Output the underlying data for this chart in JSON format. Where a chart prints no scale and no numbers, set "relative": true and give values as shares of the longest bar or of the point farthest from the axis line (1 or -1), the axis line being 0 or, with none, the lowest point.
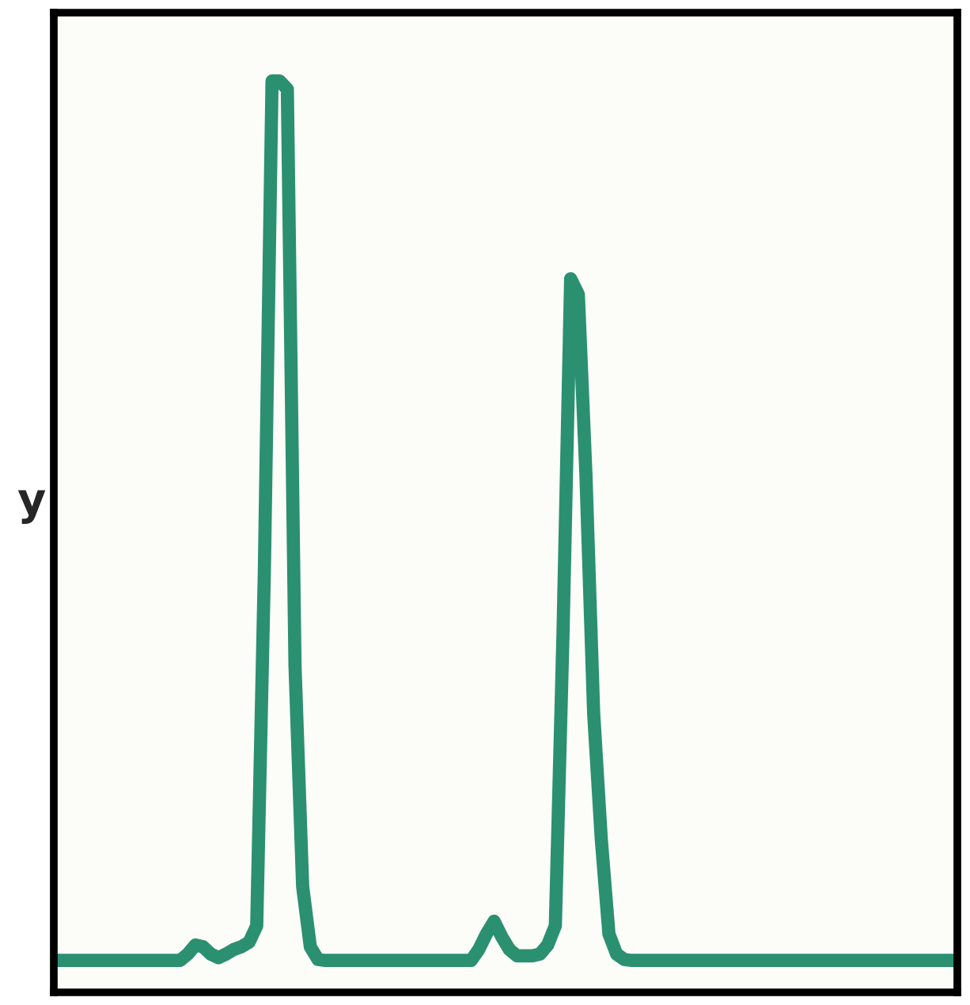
{
  "chart_data": {
    "type": "line",
    "relative": true,
    "ylabel": "y",
    "grid": false,
    "legend": false,
    "categories": [
      null,
      null,
      null,
      null,
      null,
      null,
      null,
      null,
      null,
      null,
      null,
      null,
      null,
      null,
      null,
      null,
      null,
      null,
      null,
      null,
      null,
      null,
      null,
      null,
      null,
      null,
      null,
      null,
      null,
      null,
      null,
      null,
      null,
      null,
      null,
      null,
      null,
      null,
      null,
      null,
      null,
      null,
      null,
      null,
      null,
      null,
      null,
      null,
      null,
      null,
      null,
      null,
      null,
      null,
      null,
      null,
      null,
      null,
      null,
      null,
      null,
      null,
      null,
      null,
      null,
      null,
      null,
      null,
      null,
      null,
      null,
      null,
      null,
      null,
      null,
      null,
      null,
      null,
      null,
      null,
      null,
      null,
      null,
      null,
      null,
      null,
      null,
      null,
      null,
      null,
      null,
      null,
      null,
      null,
      null,
      null,
      null,
      null,
      null,
      null,
      null,
      null,
      null,
      null,
      null,
      null,
      null,
      null,
      null,
      null,
      null,
      null,
      null,
      null,
      null,
      null,
      null,
      null
    ],
    "series": [
      {
        "color": "#2a9070",
        "values": [
          0.035,
          0.035,
          0.035,
          0.035,
          0.035,
          0.035,
          0.035,
          0.035,
          0.035,
          0.035,
          0.035,
          0.035,
          0.035,
          0.035,
          0.035,
          0.035,
          0.035,
          0.042,
          0.052,
          0.05,
          0.042,
          0.038,
          0.042,
          0.047,
          0.05,
          0.055,
          0.073,
          0.463,
          1,
          1,
          0.991,
          0.359,
          0.116,
          0.05,
          0.036,
          0.035,
          0.035,
          0.035,
          0.035,
          0.035,
          0.035,
          0.035,
          0.035,
          0.035,
          0.035,
          0.035,
          0.035,
          0.035,
          0.035,
          0.035,
          0.035,
          0.035,
          0.035,
          0.035,
          0.035,
          0.047,
          0.064,
          0.078,
          0.061,
          0.047,
          0.04,
          0.04,
          0.04,
          0.042,
          0.052,
          0.073,
          0.393,
          0.783,
          0.766,
          0.567,
          0.307,
          0.168,
          0.064,
          0.042,
          0.036,
          0.035,
          0.035,
          0.035,
          0.035,
          0.035,
          0.035,
          0.035,
          0.035,
          0.035,
          0.035,
          0.035,
          0.035,
          0.035,
          0.035,
          0.035,
          0.035,
          0.035,
          0.035,
          0.035,
          0.035,
          0.035,
          0.035,
          0.035,
          0.035,
          0.035,
          0.035,
          0.035,
          0.035,
          0.035,
          0.035,
          0.035,
          0.035,
          0.035,
          0.035,
          0.035,
          0.035,
          0.035,
          0.035,
          0.035,
          0.035,
          0.035,
          0.035,
          0.035
        ]
      }
    ]
  }
}
